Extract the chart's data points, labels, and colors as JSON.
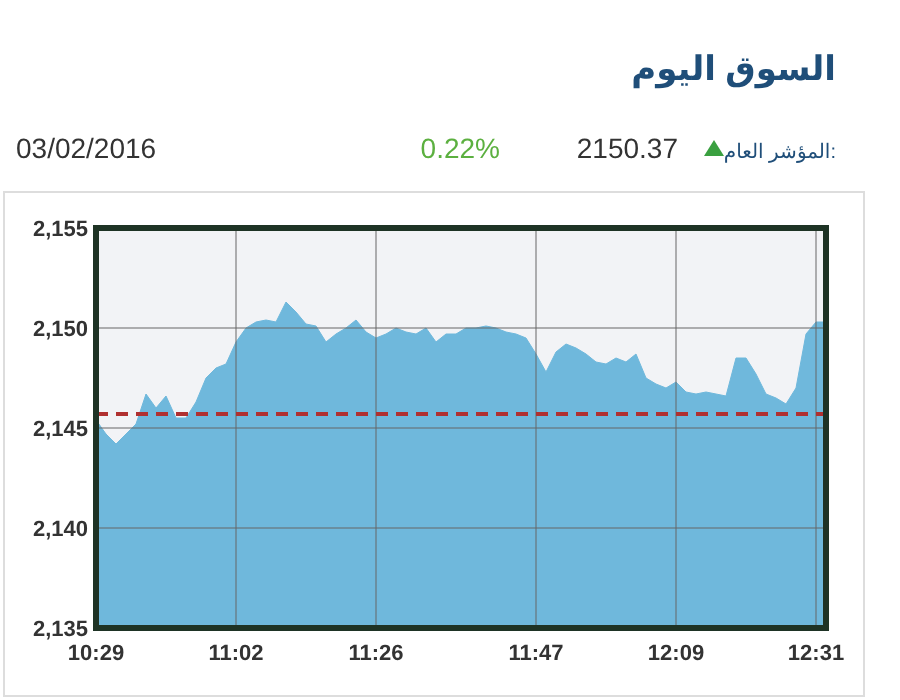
{
  "chart_data": {
    "type": "area",
    "title": "السوق اليوم",
    "annotations": [
      "03/02/2016",
      "0.22%",
      "2150.37",
      "المؤشر العام:"
    ],
    "categories": [
      "10:29",
      null,
      null,
      null,
      null,
      null,
      null,
      null,
      null,
      null,
      null,
      null,
      null,
      null,
      "11:02",
      null,
      null,
      null,
      null,
      null,
      null,
      null,
      null,
      null,
      null,
      null,
      null,
      null,
      "11:26",
      null,
      null,
      null,
      null,
      null,
      null,
      null,
      null,
      null,
      null,
      null,
      null,
      null,
      null,
      null,
      "11:47",
      null,
      null,
      null,
      null,
      null,
      null,
      null,
      null,
      null,
      null,
      null,
      null,
      null,
      "12:09",
      null,
      null,
      null,
      null,
      null,
      null,
      null,
      null,
      null,
      null,
      null,
      null,
      null,
      "12:31",
      null
    ],
    "series": [
      {
        "color": "#6fb8dc",
        "values": [
          2145.4,
          2144.7,
          2144.2,
          2144.7,
          2145.2,
          2146.7,
          2146.0,
          2146.6,
          2145.5,
          2145.5,
          2146.3,
          2147.5,
          2148.0,
          2148.2,
          2149.3,
          2150.0,
          2150.3,
          2150.4,
          2150.3,
          2151.3,
          2150.8,
          2150.2,
          2150.1,
          2149.3,
          2149.7,
          2150.0,
          2150.4,
          2149.8,
          2149.5,
          2149.7,
          2150.0,
          2149.8,
          2149.7,
          2150.0,
          2149.3,
          2149.7,
          2149.7,
          2150.0,
          2150.0,
          2150.1,
          2150.0,
          2149.8,
          2149.7,
          2149.5,
          2148.7,
          2147.8,
          2148.8,
          2149.2,
          2149.0,
          2148.7,
          2148.3,
          2148.2,
          2148.5,
          2148.3,
          2148.7,
          2147.5,
          2147.2,
          2147.0,
          2147.3,
          2146.8,
          2146.7,
          2146.8,
          2146.7,
          2146.6,
          2148.5,
          2148.5,
          2147.7,
          2146.7,
          2146.5,
          2146.2,
          2147.0,
          2149.7,
          2150.3,
          2150.3
        ]
      }
    ],
    "ylim": [
      2135,
      2155
    ],
    "yticks": [
      {
        "value": 2135,
        "label": "2,135"
      },
      {
        "value": 2140,
        "label": "2,140"
      },
      {
        "value": 2145,
        "label": "2,145"
      },
      {
        "value": 2150,
        "label": "2,150"
      },
      {
        "value": 2155,
        "label": "2,155"
      }
    ],
    "ref_lines": [
      {
        "axis": "y",
        "value": 2145.7,
        "color": "#b03030",
        "line_style": "dashed"
      }
    ],
    "grid": true
  }
}
